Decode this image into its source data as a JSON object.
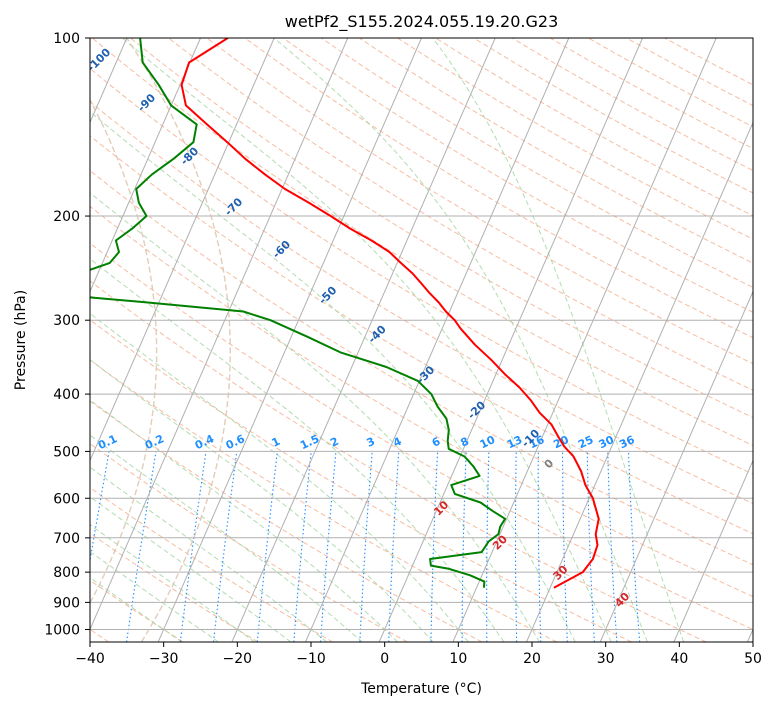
{
  "chart_data": {
    "type": "line",
    "title": "wetPf2_S155.2024.055.19.20.G23",
    "xlabel": "Temperature (°C)",
    "ylabel": "Pressure (hPa)",
    "xlim": [
      -40,
      50
    ],
    "ylim": [
      1050,
      100
    ],
    "y_scale": "log",
    "grid": true,
    "x_ticks": [
      -40,
      -30,
      -20,
      -10,
      0,
      10,
      20,
      30,
      40,
      50
    ],
    "x_tick_labels": [
      "−40",
      "−30",
      "−20",
      "−10",
      "0",
      "10",
      "20",
      "30",
      "40",
      "50"
    ],
    "y_ticks": [
      100,
      200,
      300,
      400,
      500,
      600,
      700,
      800,
      900,
      1000
    ],
    "y_tick_labels": [
      "100",
      "200",
      "300",
      "400",
      "500",
      "600",
      "700",
      "800",
      "900",
      "1000"
    ],
    "skew_x_per_decade": 35,
    "series": [
      {
        "color": "#ff0000",
        "pressure": [
          850,
          800,
          760,
          720,
          690,
          650,
          600,
          570,
          540,
          510,
          490,
          470,
          450,
          430,
          410,
          390,
          370,
          350,
          330,
          310,
          300,
          290,
          280,
          270,
          260,
          250,
          240,
          230,
          220,
          210,
          200,
          190,
          180,
          170,
          160,
          150,
          140,
          130,
          120,
          110,
          100
        ],
        "temperature": [
          20.5,
          23.5,
          24.1,
          23.9,
          23.0,
          22.5,
          20.5,
          18.7,
          17.3,
          15.4,
          13.5,
          12.0,
          10.5,
          8.2,
          6.3,
          4.0,
          1.2,
          -1.5,
          -4.6,
          -7.5,
          -8.8,
          -10.5,
          -12.0,
          -13.8,
          -15.5,
          -17.3,
          -19.5,
          -21.7,
          -24.8,
          -28.4,
          -31.8,
          -35.5,
          -39.6,
          -43.2,
          -46.8,
          -50.2,
          -54.0,
          -58.0,
          -59.8,
          -60.1,
          -56.3
        ]
      },
      {
        "color": "#008000",
        "pressure": [
          850,
          830,
          810,
          790,
          780,
          760,
          740,
          710,
          690,
          670,
          650,
          630,
          610,
          590,
          570,
          550,
          530,
          510,
          495,
          480,
          460,
          440,
          420,
          400,
          380,
          360,
          340,
          320,
          300,
          290,
          280,
          275,
          270,
          260,
          250,
          240,
          230,
          220,
          210,
          200,
          190,
          180,
          170,
          160,
          150,
          140,
          130,
          120,
          110,
          100
        ],
        "temperature": [
          11.0,
          10.7,
          8.4,
          5.2,
          2.5,
          2.0,
          8.6,
          8.9,
          9.8,
          9.6,
          9.8,
          7.6,
          5.5,
          1.5,
          0.5,
          3.8,
          2.4,
          0.6,
          -2.0,
          -2.6,
          -3.1,
          -4.1,
          -6.0,
          -7.6,
          -10.2,
          -15.3,
          -22.4,
          -27.8,
          -33.8,
          -38.0,
          -51.5,
          -58.9,
          -65.0,
          -66.3,
          -62.5,
          -59.0,
          -58.4,
          -59.5,
          -58.0,
          -56.8,
          -58.6,
          -59.8,
          -58.5,
          -56.5,
          -54.8,
          -55.4,
          -60.0,
          -62.9,
          -66.4,
          -68.2
        ]
      }
    ],
    "isotherm_labels": [
      {
        "value": 10,
        "text": "10"
      },
      {
        "value": 20,
        "text": "20"
      },
      {
        "value": 30,
        "text": "30"
      },
      {
        "value": 40,
        "text": "40"
      }
    ],
    "zero_label": {
      "value": 0,
      "text": "0"
    },
    "mixing_ratio_labels": [
      "0.1",
      "0.2",
      "0.4",
      "0.6",
      "1",
      "1.5",
      "2",
      "3",
      "4",
      "6",
      "8",
      "10",
      "13",
      "16",
      "20",
      "25",
      "30",
      "36"
    ],
    "mixing_ratio_values": [
      0.1,
      0.2,
      0.4,
      0.6,
      1,
      1.5,
      2,
      3,
      4,
      6,
      8,
      10,
      13,
      16,
      20,
      25,
      30,
      36
    ],
    "dry_adiabat_labels": [
      "-100",
      "-90",
      "-80",
      "-70",
      "-60",
      "-50",
      "-40",
      "-30",
      "-20",
      "-10"
    ],
    "dry_adiabat_values": [
      -100,
      -90,
      -80,
      -70,
      -60,
      -50,
      -40,
      -30,
      -20,
      -10
    ],
    "colors": {
      "temperature": "#ff0000",
      "dewpoint": "#008000",
      "grid": "#b0b0b0",
      "dry_adiabat": "#f4a582",
      "moist_adiabat": "#a6d6a6",
      "mixing_ratio": "#1f8fff",
      "mixing_ratio_label": "#1f8fff",
      "adiabat_label": "#2060b0",
      "isotherm_label": "#d62728",
      "zero_label": "#808080",
      "lcl_curve": "#d9c0a8"
    }
  }
}
